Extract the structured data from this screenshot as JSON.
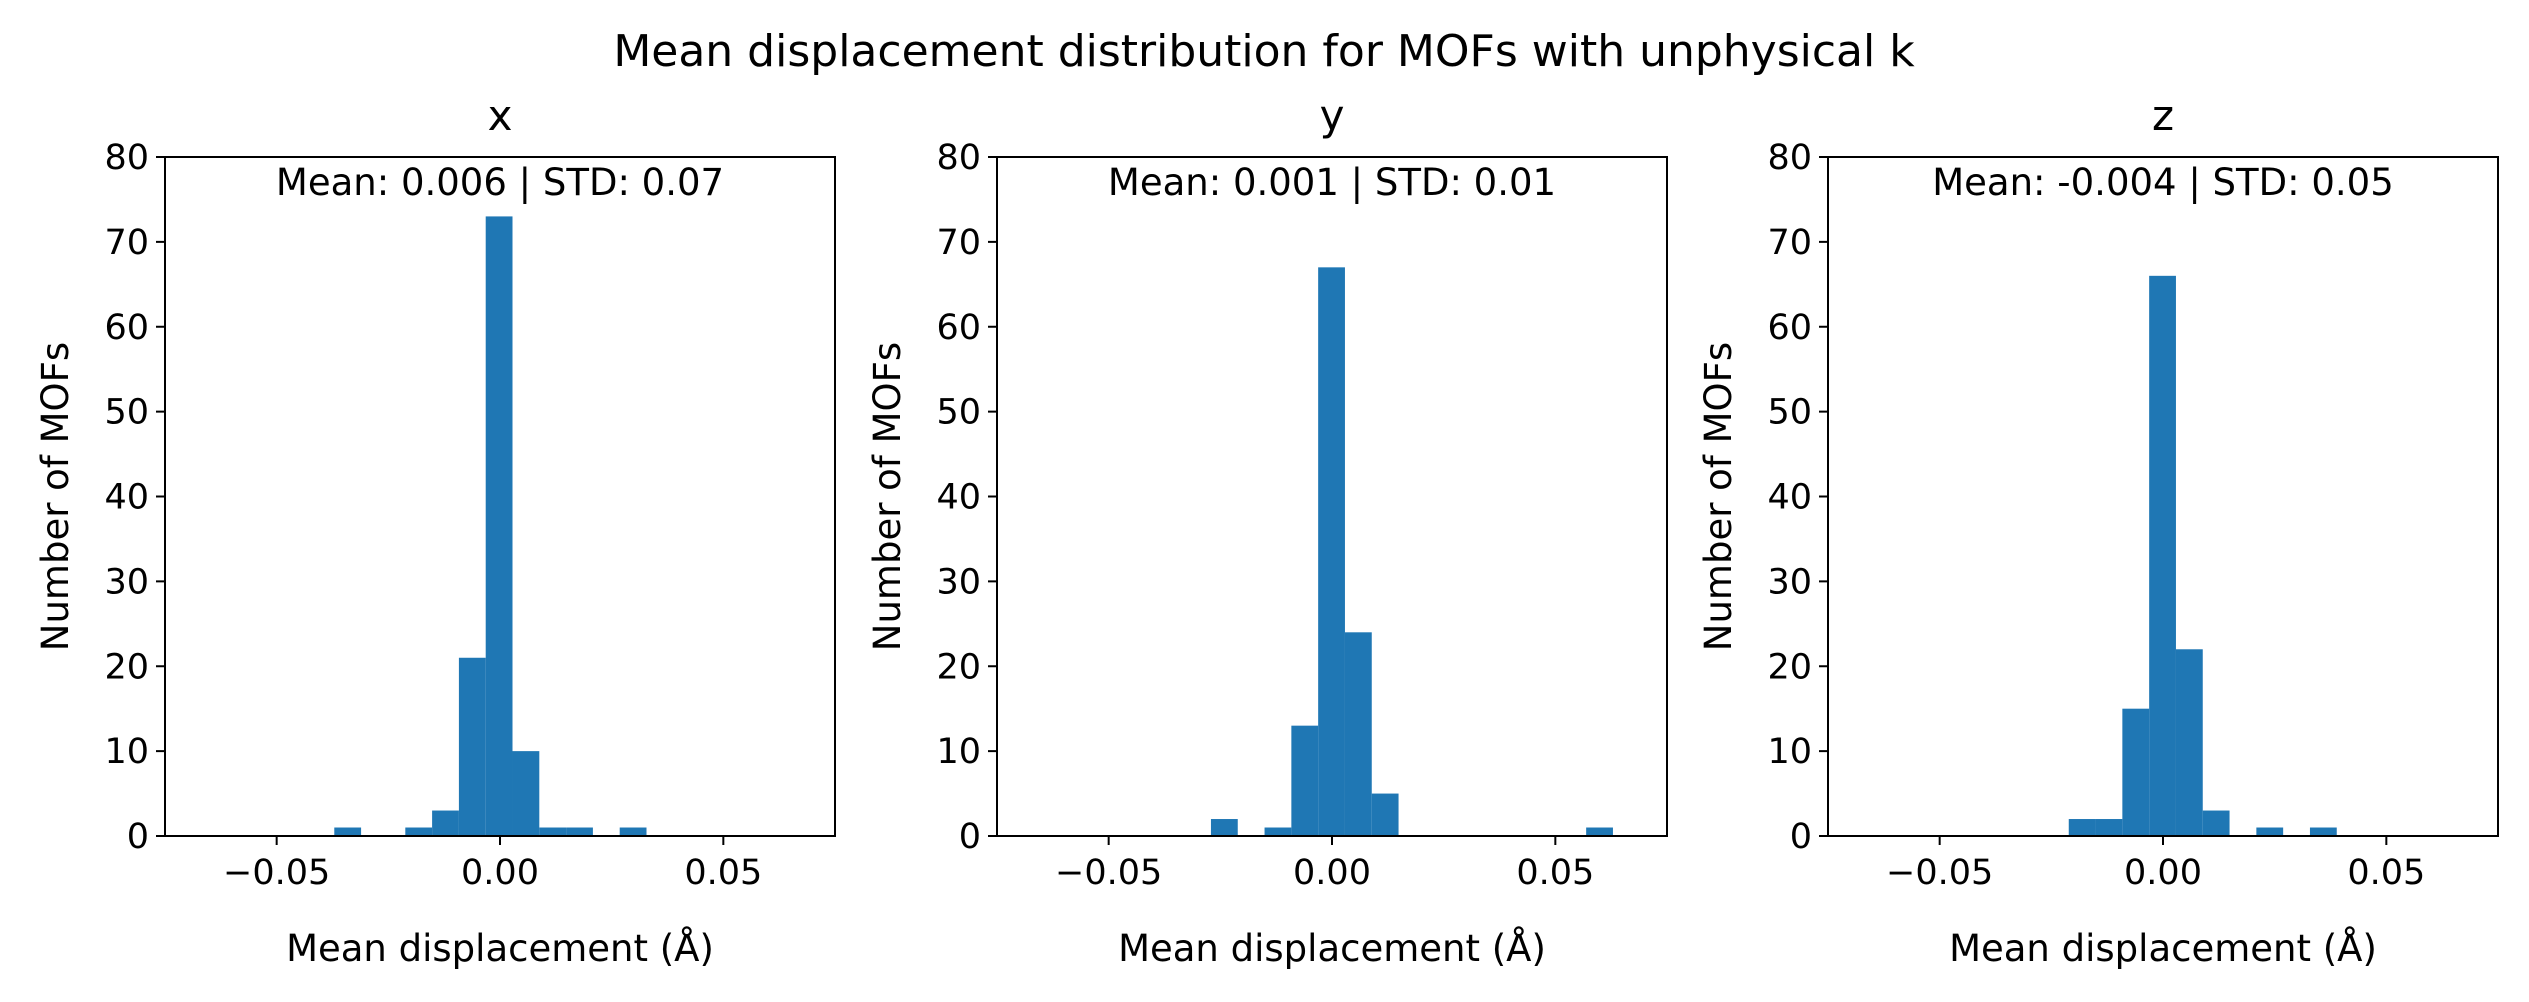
{
  "figure_title": "Mean displacement distribution for MOFs with unphysical k",
  "chart_data": [
    {
      "type": "bar",
      "title": "x",
      "annotation": "Mean: 0.006 | STD: 0.07",
      "xlabel": "Mean displacement (Å)",
      "ylabel": "Number of MOFs",
      "xlim": [
        -0.075,
        0.075
      ],
      "ylim": [
        0,
        80
      ],
      "xticks": [
        -0.05,
        0.0,
        0.05
      ],
      "xtick_labels": [
        "−0.05",
        "0.00",
        "0.05"
      ],
      "yticks": [
        0,
        10,
        20,
        30,
        40,
        50,
        60,
        70,
        80
      ],
      "ytick_labels": [
        "0",
        "10",
        "20",
        "30",
        "40",
        "50",
        "60",
        "70",
        "80"
      ],
      "bin_edges": [
        -0.0371,
        -0.0311,
        -0.0212,
        -0.0152,
        -0.0092,
        -0.0032,
        0.0028,
        0.0088,
        0.0148,
        0.0208,
        0.0268,
        0.0328
      ],
      "values": [
        1,
        0,
        1,
        3,
        21,
        73,
        10,
        1,
        1,
        0,
        1
      ],
      "color": "#1f77b4"
    },
    {
      "type": "bar",
      "title": "y",
      "annotation": "Mean: 0.001 | STD: 0.01",
      "xlabel": "Mean displacement (Å)",
      "ylabel": "Number of MOFs",
      "xlim": [
        -0.075,
        0.075
      ],
      "ylim": [
        0,
        80
      ],
      "xticks": [
        -0.05,
        0.0,
        0.05
      ],
      "xtick_labels": [
        "−0.05",
        "0.00",
        "0.05"
      ],
      "yticks": [
        0,
        10,
        20,
        30,
        40,
        50,
        60,
        70,
        80
      ],
      "ytick_labels": [
        "0",
        "10",
        "20",
        "30",
        "40",
        "50",
        "60",
        "70",
        "80"
      ],
      "bin_edges": [
        -0.0271,
        -0.0211,
        -0.0151,
        -0.0091,
        -0.0031,
        0.0029,
        0.0089,
        0.0149,
        0.0569,
        0.0629
      ],
      "values": [
        2,
        0,
        1,
        13,
        67,
        24,
        5,
        0,
        1
      ],
      "color": "#1f77b4"
    },
    {
      "type": "bar",
      "title": "z",
      "annotation": "Mean: -0.004 | STD: 0.05",
      "xlabel": "Mean displacement (Å)",
      "ylabel": "Number of MOFs",
      "xlim": [
        -0.075,
        0.075
      ],
      "ylim": [
        0,
        80
      ],
      "xticks": [
        -0.05,
        0.0,
        0.05
      ],
      "xtick_labels": [
        "−0.05",
        "0.00",
        "0.05"
      ],
      "yticks": [
        0,
        10,
        20,
        30,
        40,
        50,
        60,
        70,
        80
      ],
      "ytick_labels": [
        "0",
        "10",
        "20",
        "30",
        "40",
        "50",
        "60",
        "70",
        "80"
      ],
      "bin_edges": [
        -0.0211,
        -0.0151,
        -0.0091,
        -0.0031,
        0.0029,
        0.0089,
        0.0149,
        0.0209,
        0.0269,
        0.0329,
        0.0389
      ],
      "values": [
        2,
        2,
        15,
        66,
        22,
        3,
        0,
        1,
        0,
        1
      ],
      "color": "#1f77b4"
    }
  ]
}
